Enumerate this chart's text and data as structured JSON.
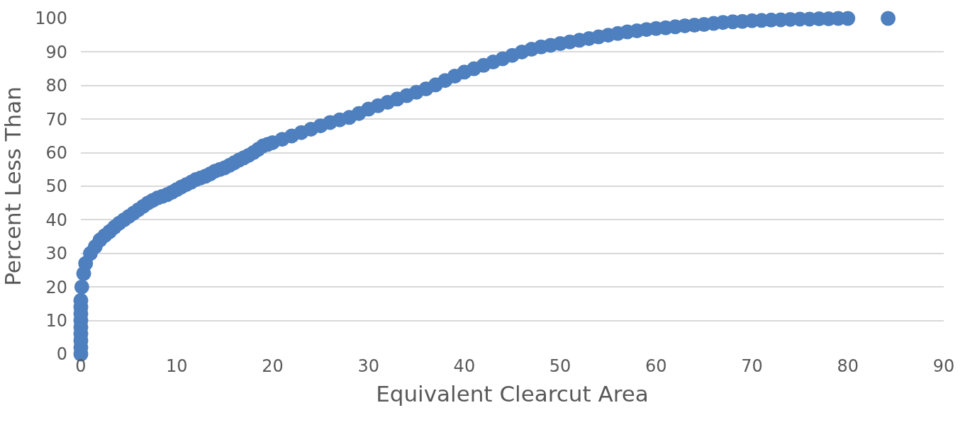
{
  "chart_data": {
    "type": "scatter",
    "xlabel": "Equivalent Clearcut Area",
    "ylabel": "Percent Less Than",
    "x": [
      0,
      0,
      0,
      0,
      0,
      0,
      0,
      0,
      0,
      0.1,
      0.3,
      0.5,
      1,
      1.5,
      2,
      2.5,
      3,
      3.5,
      4,
      4.5,
      5,
      5.5,
      6,
      6.5,
      7,
      7.5,
      8,
      8.5,
      9,
      9.5,
      10,
      10.5,
      11,
      11.5,
      12,
      12.5,
      13,
      13.5,
      14,
      14.5,
      15,
      15.5,
      16,
      16.5,
      17,
      17.5,
      18,
      18.5,
      19,
      19.5,
      20,
      21,
      22,
      23,
      24,
      25,
      26,
      27,
      28,
      29,
      30,
      31,
      32,
      33,
      34,
      35,
      36,
      37,
      38,
      39,
      40,
      41,
      42,
      43,
      44,
      45,
      46,
      47,
      48,
      49,
      50,
      51,
      52,
      53,
      54,
      55,
      56,
      57,
      58,
      59,
      60,
      61,
      62,
      63,
      64,
      65,
      66,
      67,
      68,
      69,
      70,
      71,
      72,
      73,
      74,
      75,
      76,
      77,
      78,
      79,
      80,
      84.2
    ],
    "series": [
      {
        "color": "#4e7fbf",
        "values": [
          0,
          2,
          4,
          6,
          8,
          10,
          12,
          14,
          16,
          20,
          24,
          27,
          30,
          32,
          34,
          35.3,
          36.5,
          37.8,
          39,
          40,
          41,
          42,
          43,
          44,
          45,
          45.8,
          46.5,
          47,
          47.5,
          48.2,
          49,
          49.8,
          50.5,
          51.2,
          52,
          52.5,
          53,
          53.7,
          54.5,
          55,
          55.5,
          56.2,
          57,
          57.8,
          58.5,
          59.2,
          60,
          61,
          62,
          62.5,
          63,
          64,
          65,
          66,
          67,
          68,
          69,
          69.8,
          70.5,
          71.7,
          73,
          74,
          75,
          76,
          77,
          78,
          79,
          80.2,
          81.5,
          82.8,
          84,
          85,
          86,
          87,
          88,
          89,
          90,
          90.8,
          91.5,
          92,
          92.5,
          93,
          93.5,
          94,
          94.5,
          95,
          95.5,
          96,
          96.3,
          96.7,
          97,
          97.2,
          97.5,
          97.8,
          98,
          98.2,
          98.5,
          98.8,
          99,
          99.1,
          99.3,
          99.4,
          99.5,
          99.6,
          99.7,
          99.8,
          99.8,
          99.9,
          99.9,
          100,
          100,
          100
        ]
      }
    ],
    "xlim": [
      0,
      90
    ],
    "xticks": [
      0,
      10,
      20,
      30,
      40,
      50,
      60,
      70,
      80,
      90
    ],
    "ylim": [
      0,
      100
    ],
    "yticks": [
      0,
      10,
      20,
      30,
      40,
      50,
      60,
      70,
      80,
      90,
      100
    ],
    "grid": "y",
    "marker": "circle"
  }
}
